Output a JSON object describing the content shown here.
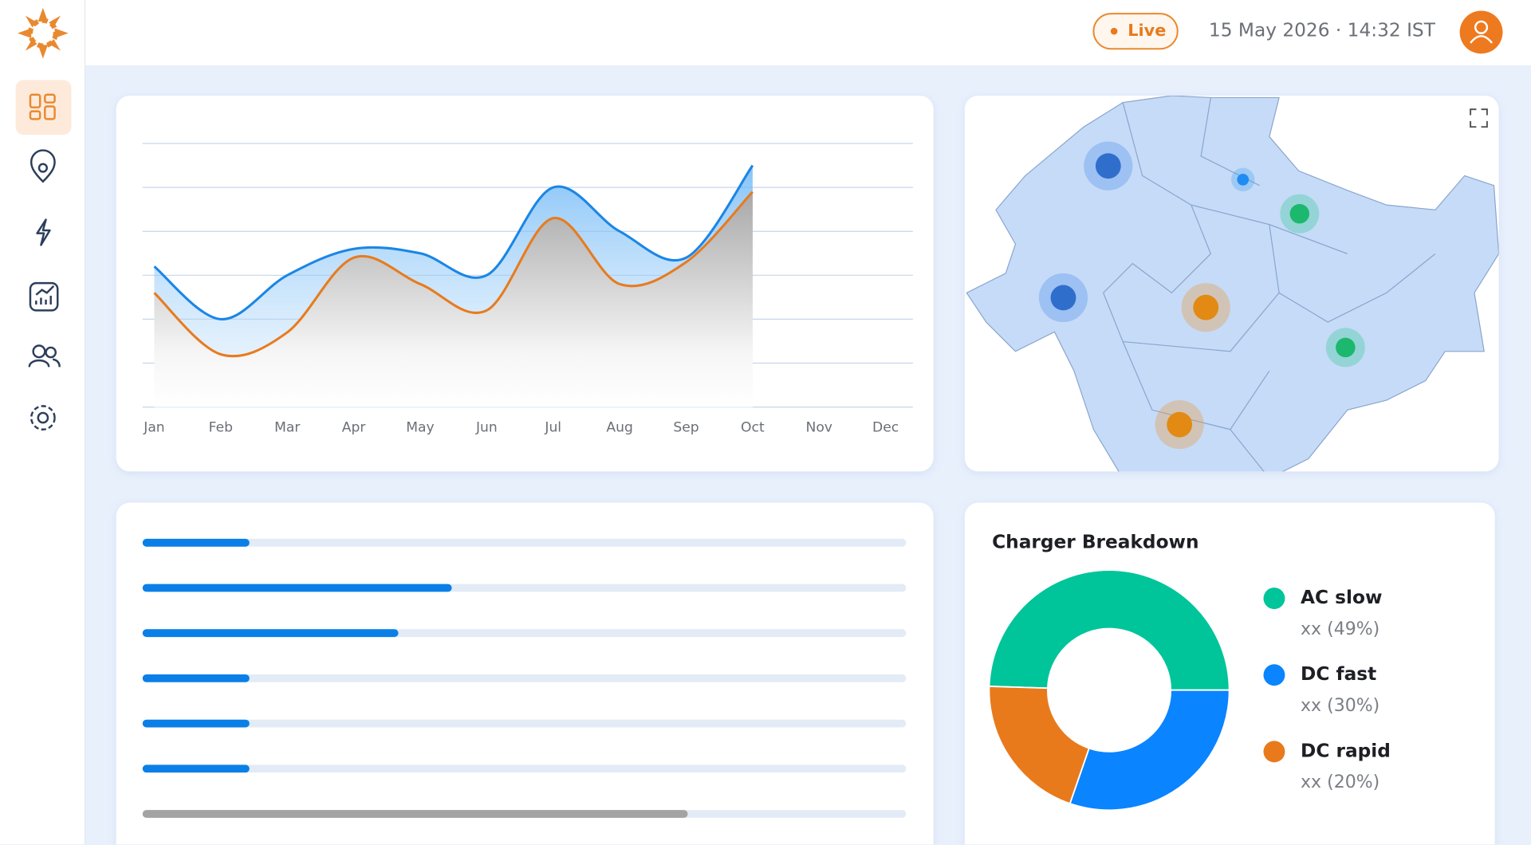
{
  "header": {
    "status": "Live",
    "datetime": "15 May 2026 · 14:32 IST"
  },
  "chart_data": [
    {
      "type": "line",
      "categories": [
        "Jan",
        "Feb",
        "Mar",
        "Apr",
        "May",
        "Jun",
        "Jul",
        "Aug",
        "Sep",
        "Oct",
        "Nov",
        "Dec"
      ],
      "series": [
        {
          "color": "#1a86e6",
          "values": [
            3.2,
            2.0,
            3.0,
            3.6,
            3.5,
            3.0,
            5.0,
            4.0,
            3.4,
            5.5,
            null,
            null
          ]
        },
        {
          "color": "#e87b1e",
          "values": [
            2.6,
            1.2,
            1.7,
            3.4,
            2.8,
            2.2,
            4.3,
            2.8,
            3.3,
            4.9,
            null,
            null
          ]
        }
      ],
      "ylim": [
        0,
        6
      ],
      "yticks": [
        0,
        1,
        2,
        3,
        4,
        5,
        6
      ],
      "grid": true
    },
    {
      "type": "bar",
      "orientation": "horizontal",
      "xlim": [
        0,
        100
      ],
      "values": [
        14,
        40.5,
        33.5,
        14,
        14,
        14,
        71.4
      ],
      "colors": [
        "#0b7fe8",
        "#0b7fe8",
        "#0b7fe8",
        "#0b7fe8",
        "#0b7fe8",
        "#0b7fe8",
        "#a3a3a3"
      ]
    },
    {
      "type": "donut",
      "title": "Charger Breakdown",
      "categories": [
        "AC slow",
        "DC fast",
        "DC rapid"
      ],
      "values": [
        49,
        30,
        20
      ],
      "value_labels": [
        "xx (49%)",
        "xx (30%)",
        "xx (20%)"
      ],
      "colors": [
        "#00c49a",
        "#0a84ff",
        "#e87a1c"
      ]
    }
  ]
}
